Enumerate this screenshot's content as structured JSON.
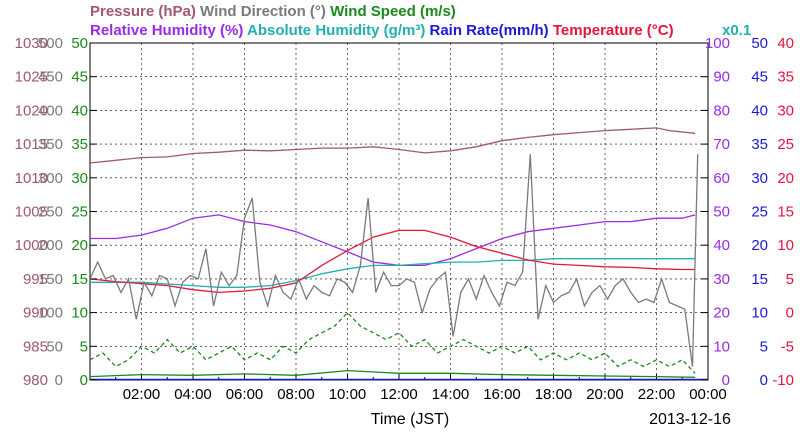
{
  "chart_data": {
    "type": "line",
    "x_label": "Time (JST)",
    "date": "2013-12-16",
    "x_range_hours": [
      0,
      24
    ],
    "x_ticks": [
      "02:00",
      "04:00",
      "06:00",
      "08:00",
      "10:00",
      "12:00",
      "14:00",
      "16:00",
      "18:00",
      "20:00",
      "22:00",
      "00:00"
    ],
    "legend_rows": [
      [
        {
          "text": "Pressure (hPa)",
          "color": "#a05a6a"
        },
        {
          "text": "Wind Direction (°)",
          "color": "#7a7a7a"
        },
        {
          "text": "Wind Speed (m/s)",
          "color": "#1a8a1a"
        }
      ],
      [
        {
          "text": "Relative Humidity (%)",
          "color": "#9a2ae6"
        },
        {
          "text": "Absolute Humidity (g/m³)",
          "color": "#22b0b0"
        },
        {
          "text": "Rain Rate(mm/h)",
          "color": "#1a1ad6"
        },
        {
          "text": "Temperature (°C)",
          "color": "#e6153c"
        }
      ]
    ],
    "scale_note": {
      "text": "x0.1",
      "color": "#22b0b0"
    },
    "axes": [
      {
        "name": "Pressure (hPa)",
        "color": "#a05a6a",
        "side": "left",
        "ticks": [
          980,
          985,
          990,
          995,
          1000,
          1005,
          1010,
          1015,
          1020,
          1025,
          1030
        ]
      },
      {
        "name": "Wind Direction (°)",
        "color": "#7a7a7a",
        "side": "left",
        "ticks": [
          0,
          50,
          100,
          150,
          200,
          250,
          300,
          350,
          400,
          450,
          500
        ]
      },
      {
        "name": "Wind Speed (m/s)",
        "color": "#1a8a1a",
        "side": "left",
        "ticks": [
          0,
          5,
          10,
          15,
          20,
          25,
          30,
          35,
          40,
          45,
          50
        ]
      },
      {
        "name": "Relative Humidity (%)",
        "color": "#9a2ae6",
        "side": "right",
        "ticks": [
          0,
          10,
          20,
          30,
          40,
          50,
          60,
          70,
          80,
          90,
          100
        ]
      },
      {
        "name": "Rain Rate(mm/h)",
        "color": "#1a1ad6",
        "side": "right",
        "ticks": [
          0,
          5,
          10,
          15,
          20,
          25,
          30,
          35,
          40,
          45,
          50
        ]
      },
      {
        "name": "Temperature (°C)",
        "color": "#e6153c",
        "side": "right",
        "ticks": [
          -10,
          -5,
          0,
          5,
          10,
          15,
          20,
          25,
          30,
          35,
          40
        ]
      }
    ],
    "series": [
      {
        "name": "Pressure (hPa)",
        "color": "#a05a6a",
        "style": "solid",
        "x": [
          0,
          1,
          2,
          3,
          4,
          5,
          6,
          7,
          8,
          9,
          10,
          11,
          12,
          13,
          14,
          15,
          16,
          17,
          18,
          19,
          20,
          21,
          22,
          22.5,
          23.5
        ],
        "y": [
          1012.2,
          1012.6,
          1013.0,
          1013.1,
          1013.6,
          1013.8,
          1014.1,
          1014.0,
          1014.2,
          1014.4,
          1014.4,
          1014.6,
          1014.2,
          1013.7,
          1014.0,
          1014.6,
          1015.5,
          1016.0,
          1016.4,
          1016.7,
          1017.0,
          1017.2,
          1017.4,
          1017.0,
          1016.6
        ]
      },
      {
        "name": "Relative Humidity (%)",
        "color": "#9a2ae6",
        "style": "solid",
        "x": [
          0,
          1,
          2,
          3,
          4,
          5,
          6,
          7,
          8,
          9,
          10,
          11,
          12,
          13,
          14,
          15,
          16,
          17,
          18,
          19,
          20,
          21,
          22,
          23,
          23.5
        ],
        "y": [
          42,
          42,
          43,
          45,
          48,
          49,
          47,
          46,
          44,
          41,
          38,
          35,
          34,
          34,
          36,
          39,
          42,
          44,
          45,
          46,
          47,
          47,
          48,
          48,
          49
        ]
      },
      {
        "name": "Absolute Humidity (g/m³)",
        "color": "#22b0b0",
        "style": "solid",
        "scale": "rh_axis_x0.1",
        "x": [
          0,
          1,
          2,
          3,
          4,
          5,
          6,
          7,
          8,
          9,
          10,
          11,
          12,
          13,
          14,
          15,
          16,
          17,
          18,
          19,
          20,
          21,
          22,
          23,
          23.5
        ],
        "y": [
          29,
          29,
          29,
          28.5,
          28,
          27.5,
          27.5,
          28,
          29.5,
          31.5,
          33,
          34,
          34,
          34.5,
          35,
          35,
          35.5,
          35.5,
          36,
          36,
          36,
          36,
          36,
          36,
          36
        ]
      },
      {
        "name": "Temperature (°C)",
        "color": "#e6153c",
        "style": "solid",
        "x": [
          0,
          1,
          2,
          3,
          4,
          5,
          6,
          7,
          8,
          9,
          10,
          11,
          12,
          13,
          14,
          15,
          16,
          17,
          18,
          19,
          20,
          21,
          22,
          23,
          23.5
        ],
        "y": [
          5.0,
          4.6,
          4.3,
          4.0,
          3.4,
          3.0,
          3.2,
          3.6,
          4.4,
          7.0,
          9.2,
          11.2,
          12.2,
          12.2,
          11.2,
          9.8,
          8.8,
          7.8,
          7.2,
          7.0,
          6.8,
          6.7,
          6.5,
          6.4,
          6.4
        ]
      },
      {
        "name": "Wind Direction (°)",
        "color": "#7a7a7a",
        "style": "solid",
        "x": [
          0,
          0.3,
          0.6,
          0.9,
          1.2,
          1.5,
          1.8,
          2.1,
          2.4,
          2.7,
          3.0,
          3.3,
          3.6,
          3.9,
          4.2,
          4.5,
          4.8,
          5.1,
          5.4,
          5.7,
          6.0,
          6.3,
          6.6,
          6.9,
          7.2,
          7.5,
          7.8,
          8.1,
          8.4,
          8.7,
          9.0,
          9.3,
          9.6,
          9.9,
          10.2,
          10.5,
          10.8,
          11.1,
          11.4,
          11.7,
          12.0,
          12.3,
          12.6,
          12.9,
          13.2,
          13.5,
          13.8,
          14.1,
          14.4,
          14.7,
          15.0,
          15.3,
          15.6,
          15.9,
          16.2,
          16.5,
          16.8,
          17.1,
          17.4,
          17.7,
          18.0,
          18.3,
          18.6,
          18.9,
          19.2,
          19.5,
          19.8,
          20.1,
          20.4,
          20.7,
          21.0,
          21.3,
          21.6,
          21.9,
          22.2,
          22.5,
          22.8,
          23.1,
          23.4,
          23.6
        ],
        "y": [
          150,
          175,
          150,
          155,
          130,
          150,
          90,
          145,
          125,
          155,
          150,
          110,
          145,
          155,
          150,
          195,
          110,
          160,
          140,
          155,
          240,
          270,
          145,
          110,
          155,
          130,
          120,
          150,
          120,
          140,
          130,
          125,
          150,
          145,
          130,
          170,
          270,
          130,
          160,
          140,
          140,
          150,
          145,
          100,
          135,
          150,
          160,
          65,
          130,
          150,
          120,
          155,
          130,
          110,
          145,
          140,
          160,
          335,
          90,
          140,
          115,
          125,
          130,
          150,
          110,
          130,
          140,
          120,
          140,
          150,
          130,
          115,
          120,
          115,
          150,
          115,
          110,
          105,
          20,
          335
        ]
      },
      {
        "name": "Wind Speed (m/s)",
        "color": "#1a8a1a",
        "style": "dashed",
        "x": [
          0,
          0.5,
          1,
          1.5,
          2,
          2.5,
          3,
          3.5,
          4,
          4.5,
          5,
          5.5,
          6,
          6.5,
          7,
          7.5,
          8,
          8.5,
          9,
          9.5,
          10,
          10.5,
          11,
          11.5,
          12,
          12.5,
          13,
          13.5,
          14,
          14.5,
          15,
          15.5,
          16,
          16.5,
          17,
          17.5,
          18,
          18.5,
          19,
          19.5,
          20,
          20.5,
          21,
          21.5,
          22,
          22.5,
          23,
          23.5
        ],
        "y": [
          3,
          4,
          2,
          3,
          5,
          4,
          6,
          4,
          5,
          3,
          4,
          5,
          3,
          4,
          3,
          5,
          4,
          6,
          7,
          8,
          10,
          8,
          7,
          6,
          7,
          5,
          6,
          4,
          5,
          6,
          5,
          4,
          5,
          4,
          5,
          3,
          4,
          3,
          4,
          3,
          4,
          2,
          3,
          2,
          3,
          2,
          3,
          1
        ]
      },
      {
        "name": "Wind Speed (m/s)",
        "color": "#1a8a1a",
        "style": "solid",
        "x": [
          0,
          2,
          4,
          6,
          8,
          10,
          12,
          14,
          16,
          18,
          20,
          22,
          23.5
        ],
        "y": [
          0.5,
          0.8,
          0.7,
          0.9,
          0.7,
          1.4,
          1.0,
          1.0,
          0.8,
          0.7,
          0.6,
          0.5,
          0.4
        ]
      }
    ]
  }
}
